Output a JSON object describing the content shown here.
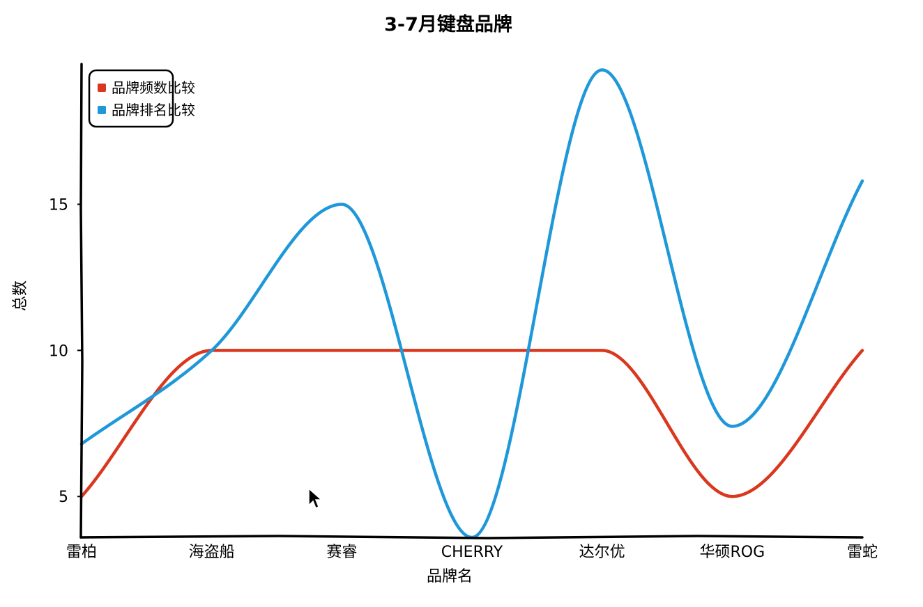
{
  "chart_data": {
    "type": "line",
    "title": "3-7月键盘品牌",
    "xlabel": "品牌名",
    "ylabel": "总数",
    "categories": [
      "雷柏",
      "海盗船",
      "赛睿",
      "CHERRY",
      "达尔优",
      "华硕ROG",
      "雷蛇"
    ],
    "yticks": [
      5,
      10,
      15
    ],
    "ylim": [
      3.6,
      19.8
    ],
    "grid": false,
    "smooth": true,
    "legend_position": "top-left",
    "series": [
      {
        "name": "品牌频数比较",
        "color": "#d9381e",
        "values": [
          5,
          10,
          10,
          10,
          10,
          5,
          10
        ]
      },
      {
        "name": "品牌排名比较",
        "color": "#1f98d9",
        "values": [
          6.8,
          10,
          15,
          3.6,
          19.6,
          7.4,
          15.8
        ]
      }
    ]
  },
  "icons": {
    "cursor": "mouse-pointer-icon"
  }
}
